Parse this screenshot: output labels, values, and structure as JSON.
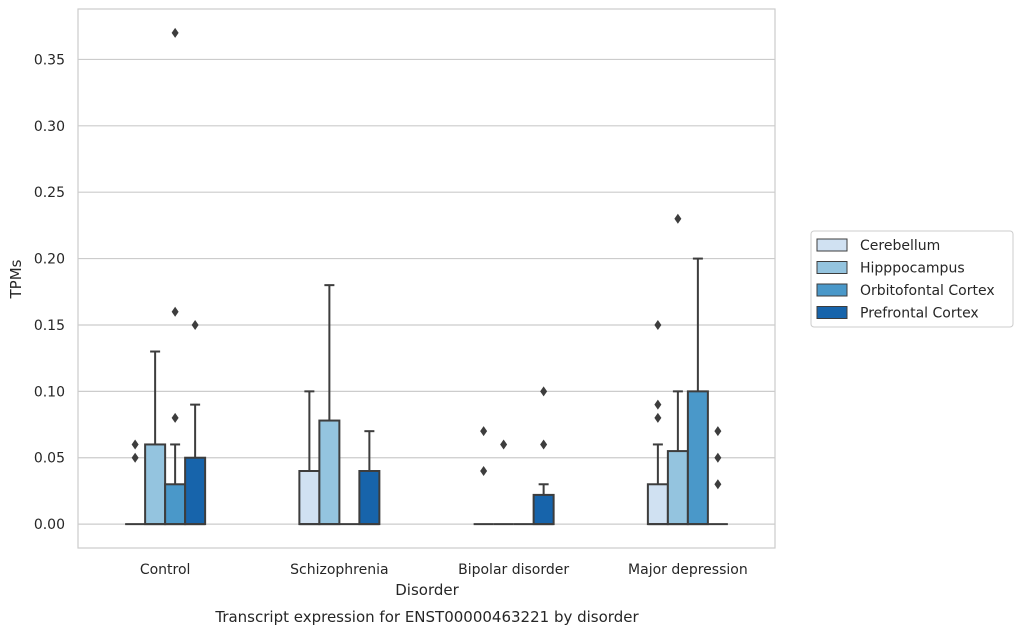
{
  "chart_data": {
    "type": "box",
    "title": "",
    "caption": "Transcript expression for ENST00000463221 by disorder",
    "xlabel": "Disorder",
    "ylabel": "TPMs",
    "ylim": [
      -0.018,
      0.388
    ],
    "yticks": [
      "0.00",
      "0.05",
      "0.10",
      "0.15",
      "0.20",
      "0.25",
      "0.30",
      "0.35"
    ],
    "categories": [
      "Control",
      "Schizophrenia",
      "Bipolar disorder",
      "Major depression"
    ],
    "grid": "horizontal",
    "legend_position": "right",
    "series": [
      {
        "name": "Cerebellum",
        "color": "#d0e1f2",
        "boxes": [
          {
            "q1": 0,
            "median": 0,
            "q3": 0,
            "whisker_low": 0,
            "whisker_high": 0,
            "outliers": [
              0.05,
              0.06
            ]
          },
          {
            "q1": 0,
            "median": 0,
            "q3": 0.04,
            "whisker_low": 0,
            "whisker_high": 0.1,
            "outliers": []
          },
          {
            "q1": 0,
            "median": 0,
            "q3": 0,
            "whisker_low": 0,
            "whisker_high": 0,
            "outliers": [
              0.04,
              0.07
            ]
          },
          {
            "q1": 0,
            "median": 0,
            "q3": 0.03,
            "whisker_low": 0,
            "whisker_high": 0.06,
            "outliers": [
              0.08,
              0.09,
              0.15
            ]
          }
        ]
      },
      {
        "name": "Hipppocampus",
        "color": "#94c4df",
        "boxes": [
          {
            "q1": 0,
            "median": 0,
            "q3": 0.06,
            "whisker_low": 0,
            "whisker_high": 0.13,
            "outliers": []
          },
          {
            "q1": 0,
            "median": 0,
            "q3": 0.078,
            "whisker_low": 0,
            "whisker_high": 0.18,
            "outliers": []
          },
          {
            "q1": 0,
            "median": 0,
            "q3": 0,
            "whisker_low": 0,
            "whisker_high": 0,
            "outliers": [
              0.06
            ]
          },
          {
            "q1": 0,
            "median": 0,
            "q3": 0.055,
            "whisker_low": 0,
            "whisker_high": 0.1,
            "outliers": [
              0.23
            ]
          }
        ]
      },
      {
        "name": "Orbitofontal Cortex",
        "color": "#4a98c9",
        "boxes": [
          {
            "q1": 0,
            "median": 0,
            "q3": 0.03,
            "whisker_low": 0,
            "whisker_high": 0.06,
            "outliers": [
              0.08,
              0.16,
              0.37
            ]
          },
          {
            "q1": 0,
            "median": 0,
            "q3": 0,
            "whisker_low": 0,
            "whisker_high": 0,
            "outliers": []
          },
          {
            "q1": 0,
            "median": 0,
            "q3": 0,
            "whisker_low": 0,
            "whisker_high": 0,
            "outliers": []
          },
          {
            "q1": 0,
            "median": 0,
            "q3": 0.1,
            "whisker_low": 0,
            "whisker_high": 0.2,
            "outliers": []
          }
        ]
      },
      {
        "name": "Prefrontal Cortex",
        "color": "#1764ab",
        "boxes": [
          {
            "q1": 0,
            "median": 0,
            "q3": 0.05,
            "whisker_low": 0,
            "whisker_high": 0.09,
            "outliers": [
              0.15
            ]
          },
          {
            "q1": 0,
            "median": 0,
            "q3": 0.04,
            "whisker_low": 0,
            "whisker_high": 0.07,
            "outliers": []
          },
          {
            "q1": 0,
            "median": 0,
            "q3": 0.022,
            "whisker_low": 0,
            "whisker_high": 0.03,
            "outliers": [
              0.06,
              0.1
            ]
          },
          {
            "q1": 0,
            "median": 0,
            "q3": 0,
            "whisker_low": 0,
            "whisker_high": 0,
            "outliers": [
              0.03,
              0.05,
              0.07
            ]
          }
        ]
      }
    ]
  }
}
